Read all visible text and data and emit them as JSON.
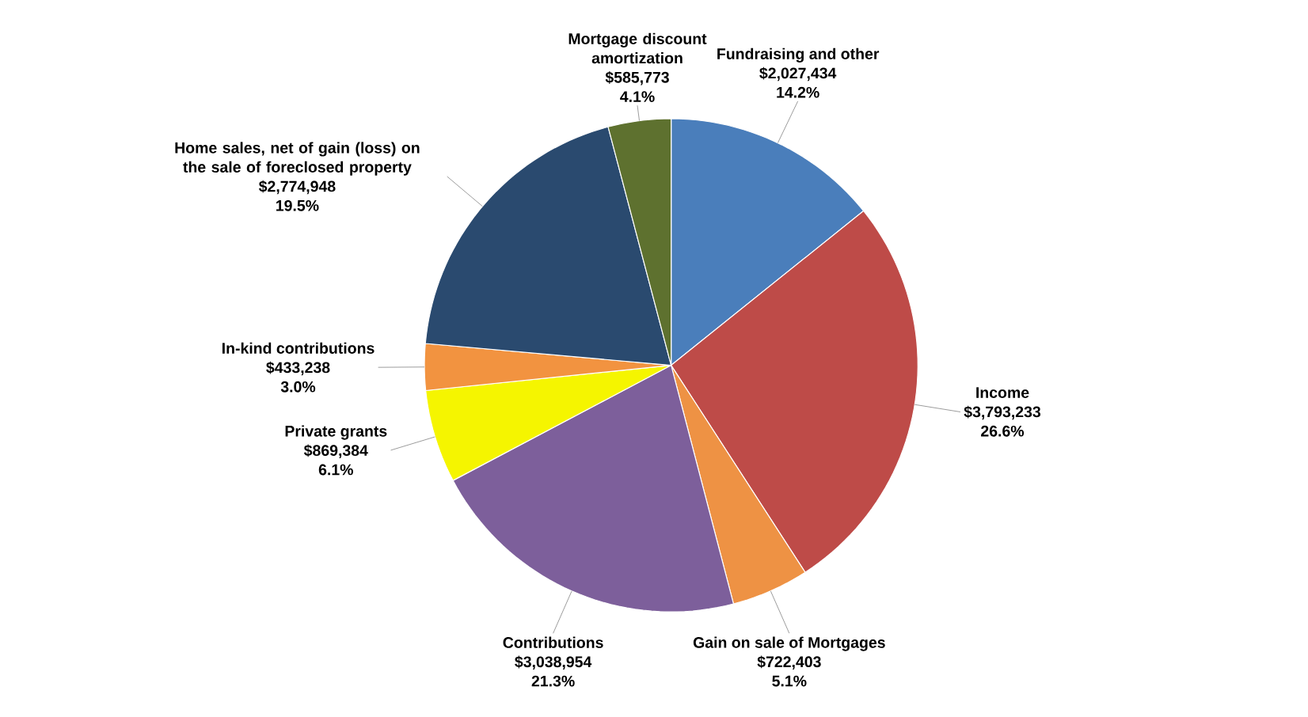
{
  "chart_data": {
    "type": "pie",
    "categories": [
      "Fundraising and other",
      "Income",
      "Gain on sale of Mortgages",
      "Contributions",
      "Private grants",
      "In-kind contributions",
      "Home sales, net of gain (loss) on the sale of foreclosed property",
      "Mortgage discount amortization"
    ],
    "values": [
      2027434,
      3793233,
      722403,
      3038954,
      869384,
      433238,
      2774948,
      585773
    ],
    "value_labels": [
      "$2,027,434",
      "$3,793,233",
      "$722,403",
      "$3,038,954",
      "$869,384",
      "$433,238",
      "$2,774,948",
      "$585,773"
    ],
    "colors": [
      "#4a7ebb",
      "#be4b48",
      "#ee9244",
      "#7d5f9b",
      "#f5f500",
      "#f29340",
      "#2a4a6f",
      "#5e712f"
    ],
    "annotations": [
      "14.2%",
      "26.6%",
      "5.1%",
      "21.3%",
      "6.1%",
      "3.0%",
      "19.5%",
      "4.1%"
    ]
  }
}
